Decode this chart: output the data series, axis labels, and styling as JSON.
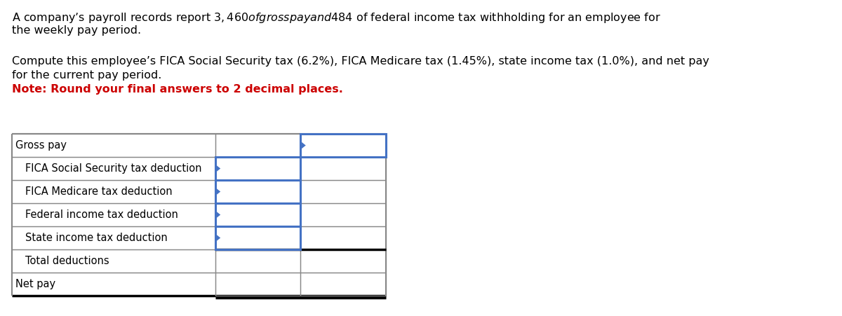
{
  "paragraph1_line1": "A company’s payroll records report $3,460 of gross pay and $484 of federal income tax withholding for an employee for",
  "paragraph1_line2": "the weekly pay period.",
  "paragraph2_line1": "Compute this employee’s FICA Social Security tax (6.2%), FICA Medicare tax (1.45%), state income tax (1.0%), and net pay",
  "paragraph2_line2": "for the current pay period.",
  "note": "Note: Round your final answers to 2 decimal places.",
  "note_color": "#cc0000",
  "rows": [
    "Gross pay",
    "FICA Social Security tax deduction",
    "FICA Medicare tax deduction",
    "Federal income tax deduction",
    "State income tax deduction",
    "Total deductions",
    "Net pay"
  ],
  "text_color": "#000000",
  "bg_color": "#ffffff",
  "table_border_color": "#888888",
  "blue_border_color": "#4472c4",
  "font_size_text": 11.5,
  "font_size_table": 10.5
}
